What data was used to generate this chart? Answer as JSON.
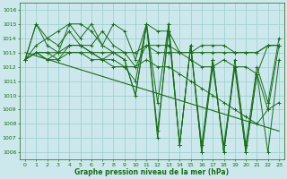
{
  "background_color": "#cce8ec",
  "grid_color": "#99cccc",
  "line_color": "#1a6b1a",
  "xlabel": "Graphe pression niveau de la mer (hPa)",
  "xlabel_color": "#1a6b1a",
  "tick_color": "#1a6b1a",
  "ylim": [
    1005.5,
    1016.5
  ],
  "xlim": [
    -0.5,
    23.5
  ],
  "yticks": [
    1006,
    1007,
    1008,
    1009,
    1010,
    1011,
    1012,
    1013,
    1014,
    1015,
    1016
  ],
  "xticks": [
    0,
    1,
    2,
    3,
    4,
    5,
    6,
    7,
    8,
    9,
    10,
    11,
    12,
    13,
    14,
    15,
    16,
    17,
    18,
    19,
    20,
    21,
    22,
    23
  ],
  "series": [
    [
      1012.5,
      1013.0,
      1012.5,
      1013.0,
      1013.5,
      1013.5,
      1013.0,
      1012.5,
      1013.0,
      1013.0,
      1012.0,
      1013.5,
      1013.5,
      1013.5,
      1013.0,
      1013.0,
      1013.5,
      1013.5,
      1013.5,
      1013.0,
      1013.0,
      1013.0,
      1013.5,
      1013.5
    ],
    [
      1012.5,
      1015.0,
      1014.0,
      1013.5,
      1014.5,
      1013.5,
      1013.5,
      1014.5,
      1013.5,
      1013.0,
      1013.0,
      1013.5,
      1013.0,
      1013.0,
      1013.0,
      1013.0,
      1013.0,
      1013.0,
      1013.0,
      1013.0,
      1013.0,
      1013.0,
      1013.5,
      1013.5
    ],
    [
      1012.5,
      1015.0,
      1013.5,
      1013.0,
      1015.0,
      1014.0,
      1015.0,
      1013.5,
      1015.0,
      1014.5,
      1012.5,
      1015.0,
      1014.5,
      1014.5,
      1013.0,
      1012.5,
      1012.0,
      1012.0,
      1012.5,
      1012.0,
      1012.0,
      1011.5,
      1013.5,
      1013.5
    ],
    [
      1012.5,
      1013.0,
      1012.5,
      1012.5,
      1013.0,
      1013.0,
      1012.5,
      1012.5,
      1012.0,
      1012.0,
      1011.0,
      1015.0,
      1009.5,
      1015.0,
      1006.5,
      1013.5,
      1006.0,
      1012.0,
      1006.5,
      1012.0,
      1006.0,
      1011.5,
      1006.0,
      1012.5
    ],
    [
      1012.5,
      1013.0,
      1013.0,
      1012.5,
      1013.5,
      1013.5,
      1013.0,
      1013.0,
      1013.0,
      1012.5,
      1010.0,
      1015.0,
      1007.5,
      1014.5,
      1006.5,
      1013.5,
      1006.0,
      1012.5,
      1006.0,
      1012.0,
      1006.0,
      1011.5,
      1009.0,
      1013.5
    ],
    [
      1012.5,
      1013.5,
      1014.0,
      1014.5,
      1015.0,
      1015.0,
      1014.5,
      1013.5,
      1013.0,
      1012.5,
      1010.0,
      1015.0,
      1007.0,
      1015.0,
      1006.5,
      1013.5,
      1006.5,
      1012.5,
      1006.0,
      1012.5,
      1006.5,
      1012.0,
      1009.5,
      1014.0
    ],
    [
      1012.5,
      1013.0,
      1013.0,
      1013.0,
      1013.0,
      1013.0,
      1013.0,
      1012.5,
      1012.5,
      1012.0,
      1012.0,
      1012.5,
      1012.0,
      1012.0,
      1011.5,
      1011.0,
      1010.5,
      1010.0,
      1009.5,
      1009.0,
      1008.5,
      1008.0,
      1009.0,
      1009.5
    ]
  ],
  "trend_line": [
    1013.0,
    1007.5
  ],
  "marker": "+",
  "linewidth": 0.7,
  "markersize": 2.5
}
